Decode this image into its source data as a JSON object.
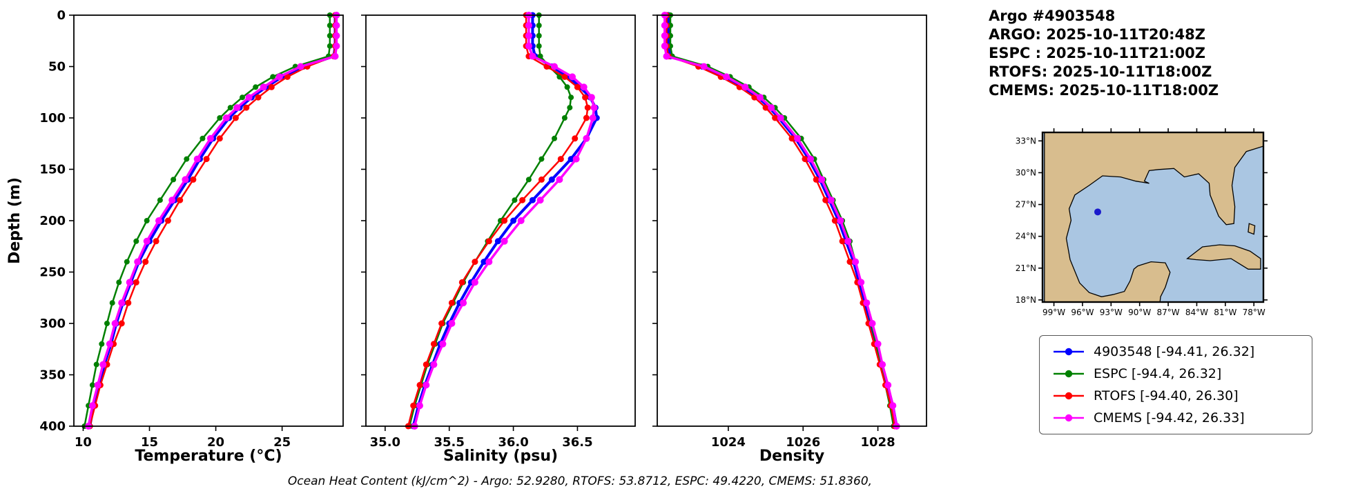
{
  "header": {
    "lines": [
      "Argo #4903548",
      "ARGO: 2025-10-11T20:48Z",
      "ESPC : 2025-10-11T21:00Z",
      "RTOFS: 2025-10-11T18:00Z",
      "CMEMS: 2025-10-11T18:00Z"
    ]
  },
  "caption": "Ocean Heat Content (kJ/cm^2) - Argo: 52.9280,  RTOFS: 53.8712,  ESPC: 49.4220,  CMEMS: 51.8360,",
  "legend": {
    "items": [
      {
        "label": "4903548 [-94.41, 26.32]",
        "color": "#0000ff"
      },
      {
        "label": "ESPC [-94.4, 26.32]",
        "color": "#008000"
      },
      {
        "label": "RTOFS [-94.40, 26.30]",
        "color": "#ff0000"
      },
      {
        "label": "CMEMS [-94.42, 26.33]",
        "color": "#ff00ff"
      }
    ]
  },
  "chart_data": {
    "type": "line",
    "subtype": "ocean-depth-profiles",
    "ylabel": "Depth (m)",
    "ylim": [
      0,
      400
    ],
    "yticks": [
      0,
      50,
      100,
      150,
      200,
      250,
      300,
      350,
      400
    ],
    "depths": [
      0,
      10,
      20,
      30,
      40,
      50,
      60,
      70,
      80,
      90,
      100,
      120,
      140,
      160,
      180,
      200,
      220,
      240,
      260,
      280,
      300,
      320,
      340,
      360,
      380,
      400
    ],
    "panels": [
      {
        "key": "temperature",
        "xlabel": "Temperature (°C)",
        "xlim": [
          9.3,
          29.6
        ],
        "xticks": [
          10,
          15,
          20,
          25
        ],
        "tick_labels": [
          "10",
          "15",
          "20",
          "25"
        ]
      },
      {
        "key": "salinity",
        "xlabel": "Salinity (psu)",
        "xlim": [
          34.85,
          36.95
        ],
        "xticks": [
          35.0,
          35.5,
          36.0,
          36.5
        ],
        "tick_labels": [
          "35.0",
          "35.5",
          "36.0",
          "36.5"
        ]
      },
      {
        "key": "density",
        "xlabel": "Density",
        "xlim": [
          1022.1,
          1029.3
        ],
        "xticks": [
          1024,
          1026,
          1028
        ],
        "tick_labels": [
          "1024",
          "1026",
          "1028"
        ]
      }
    ],
    "series": [
      {
        "name": "4903548",
        "color": "#0000ff",
        "lw": 4,
        "ms": 4.5,
        "temperature": [
          29.0,
          29.0,
          29.0,
          29.0,
          28.9,
          26.6,
          25.0,
          23.8,
          22.7,
          21.8,
          21.0,
          19.8,
          18.8,
          17.9,
          16.9,
          15.9,
          15.0,
          14.2,
          13.6,
          13.0,
          12.5,
          12.1,
          11.6,
          11.2,
          10.8,
          10.5
        ],
        "salinity": [
          36.15,
          36.15,
          36.15,
          36.15,
          36.17,
          36.3,
          36.43,
          36.52,
          36.6,
          36.64,
          36.65,
          36.57,
          36.45,
          36.3,
          36.15,
          36.0,
          35.88,
          35.77,
          35.67,
          35.58,
          35.5,
          35.43,
          35.37,
          35.31,
          35.26,
          35.22
        ],
        "density": [
          1022.4,
          1022.4,
          1022.4,
          1022.4,
          1022.45,
          1023.3,
          1023.9,
          1024.4,
          1024.8,
          1025.1,
          1025.35,
          1025.8,
          1026.15,
          1026.45,
          1026.7,
          1026.95,
          1027.15,
          1027.35,
          1027.5,
          1027.65,
          1027.8,
          1027.95,
          1028.1,
          1028.25,
          1028.4,
          1028.5
        ]
      },
      {
        "name": "ESPC",
        "color": "#008000",
        "lw": 2.5,
        "ms": 4,
        "temperature": [
          28.6,
          28.6,
          28.6,
          28.6,
          28.5,
          26.0,
          24.3,
          23.0,
          22.0,
          21.1,
          20.3,
          19.0,
          17.8,
          16.8,
          15.8,
          14.8,
          14.0,
          13.3,
          12.7,
          12.2,
          11.8,
          11.4,
          11.0,
          10.7,
          10.4,
          10.1
        ],
        "salinity": [
          36.2,
          36.2,
          36.2,
          36.2,
          36.21,
          36.28,
          36.36,
          36.42,
          36.45,
          36.44,
          36.4,
          36.32,
          36.22,
          36.12,
          36.01,
          35.9,
          35.8,
          35.7,
          35.61,
          35.53,
          35.45,
          35.39,
          35.33,
          35.28,
          35.23,
          35.19
        ],
        "density": [
          1022.45,
          1022.45,
          1022.45,
          1022.45,
          1022.5,
          1023.45,
          1024.05,
          1024.55,
          1024.95,
          1025.25,
          1025.5,
          1025.95,
          1026.3,
          1026.55,
          1026.8,
          1027.05,
          1027.25,
          1027.4,
          1027.55,
          1027.7,
          1027.82,
          1027.95,
          1028.08,
          1028.2,
          1028.32,
          1028.42
        ]
      },
      {
        "name": "RTOFS",
        "color": "#ff0000",
        "lw": 2.5,
        "ms": 4.5,
        "temperature": [
          29.0,
          29.0,
          29.0,
          29.0,
          28.9,
          26.9,
          25.4,
          24.2,
          23.2,
          22.3,
          21.5,
          20.3,
          19.3,
          18.3,
          17.3,
          16.4,
          15.5,
          14.7,
          14.0,
          13.4,
          12.9,
          12.3,
          11.8,
          11.3,
          10.9,
          10.5
        ],
        "salinity": [
          36.1,
          36.1,
          36.1,
          36.1,
          36.12,
          36.26,
          36.4,
          36.5,
          36.56,
          36.58,
          36.57,
          36.48,
          36.37,
          36.22,
          36.07,
          35.93,
          35.81,
          35.7,
          35.6,
          35.52,
          35.44,
          35.38,
          35.32,
          35.27,
          35.22,
          35.18
        ],
        "density": [
          1022.35,
          1022.35,
          1022.35,
          1022.35,
          1022.4,
          1023.2,
          1023.8,
          1024.3,
          1024.7,
          1025.0,
          1025.25,
          1025.7,
          1026.05,
          1026.35,
          1026.6,
          1026.85,
          1027.05,
          1027.25,
          1027.45,
          1027.6,
          1027.75,
          1027.9,
          1028.05,
          1028.2,
          1028.35,
          1028.45
        ]
      },
      {
        "name": "CMEMS",
        "color": "#ff00ff",
        "lw": 3.5,
        "ms": 5,
        "temperature": [
          29.1,
          29.1,
          29.1,
          29.1,
          29.0,
          26.4,
          24.8,
          23.6,
          22.5,
          21.6,
          20.8,
          19.6,
          18.6,
          17.7,
          16.7,
          15.7,
          14.8,
          14.1,
          13.5,
          12.9,
          12.4,
          12.0,
          11.5,
          11.1,
          10.7,
          10.4
        ],
        "salinity": [
          36.12,
          36.12,
          36.12,
          36.12,
          36.15,
          36.32,
          36.46,
          36.55,
          36.61,
          36.63,
          36.62,
          36.57,
          36.49,
          36.36,
          36.21,
          36.06,
          35.93,
          35.81,
          35.7,
          35.61,
          35.52,
          35.45,
          35.38,
          35.32,
          35.27,
          35.23
        ],
        "density": [
          1022.3,
          1022.3,
          1022.3,
          1022.3,
          1022.35,
          1023.35,
          1023.95,
          1024.45,
          1024.85,
          1025.15,
          1025.4,
          1025.85,
          1026.2,
          1026.5,
          1026.75,
          1027.0,
          1027.2,
          1027.4,
          1027.55,
          1027.7,
          1027.85,
          1028.0,
          1028.12,
          1028.27,
          1028.4,
          1028.5
        ]
      }
    ]
  },
  "map": {
    "water_color": "#aac6e2",
    "land_color": "#d8bd8e",
    "extent": {
      "lonW": [
        100.2,
        77.0
      ],
      "lat": [
        17.8,
        33.8
      ]
    },
    "lat_ticks": [
      {
        "v": 33,
        "label": "33°N"
      },
      {
        "v": 30,
        "label": "30°N"
      },
      {
        "v": 27,
        "label": "27°N"
      },
      {
        "v": 24,
        "label": "24°N"
      },
      {
        "v": 21,
        "label": "21°N"
      },
      {
        "v": 18,
        "label": "18°N"
      }
    ],
    "lon_ticks": [
      {
        "v": 99,
        "label": "99°W"
      },
      {
        "v": 96,
        "label": "96°W"
      },
      {
        "v": 93,
        "label": "93°W"
      },
      {
        "v": 90,
        "label": "90°W"
      },
      {
        "v": 87,
        "label": "87°W"
      },
      {
        "v": 84,
        "label": "84°W"
      },
      {
        "v": 81,
        "label": "81°W"
      },
      {
        "v": 78,
        "label": "78°W"
      }
    ],
    "polygons": {
      "mainland": [
        [
          100,
          34
        ],
        [
          77,
          34
        ],
        [
          77,
          32.5
        ],
        [
          78.8,
          32.0
        ],
        [
          80.0,
          30.5
        ],
        [
          80.3,
          28.8
        ],
        [
          80.0,
          26.8
        ],
        [
          80.1,
          25.2
        ],
        [
          80.9,
          25.1
        ],
        [
          81.7,
          25.9
        ],
        [
          82.6,
          27.9
        ],
        [
          82.7,
          29.0
        ],
        [
          83.8,
          29.9
        ],
        [
          85.3,
          29.6
        ],
        [
          86.4,
          30.4
        ],
        [
          88.0,
          30.3
        ],
        [
          89.0,
          30.2
        ],
        [
          89.5,
          29.2
        ],
        [
          89.0,
          29.0
        ],
        [
          90.4,
          29.2
        ],
        [
          92.0,
          29.6
        ],
        [
          93.9,
          29.7
        ],
        [
          95.3,
          28.8
        ],
        [
          96.8,
          27.9
        ],
        [
          97.4,
          26.6
        ],
        [
          97.2,
          25.5
        ],
        [
          97.7,
          23.8
        ],
        [
          97.3,
          21.8
        ],
        [
          96.3,
          19.6
        ],
        [
          95.3,
          18.7
        ],
        [
          94.0,
          18.3
        ],
        [
          92.8,
          18.5
        ],
        [
          91.6,
          18.8
        ],
        [
          91.0,
          19.8
        ],
        [
          90.6,
          20.9
        ],
        [
          90.2,
          21.2
        ],
        [
          88.8,
          21.6
        ],
        [
          87.3,
          21.5
        ],
        [
          86.8,
          20.6
        ],
        [
          87.3,
          19.2
        ],
        [
          87.8,
          18.3
        ],
        [
          87.9,
          17.5
        ],
        [
          100,
          17.5
        ]
      ],
      "cuba": [
        [
          85.0,
          21.9
        ],
        [
          83.4,
          23.0
        ],
        [
          81.6,
          23.2
        ],
        [
          80.0,
          23.1
        ],
        [
          78.4,
          22.6
        ],
        [
          77.3,
          21.9
        ],
        [
          77.3,
          20.9
        ],
        [
          78.6,
          20.9
        ],
        [
          80.4,
          21.9
        ],
        [
          82.6,
          21.7
        ],
        [
          84.1,
          21.8
        ]
      ],
      "andros": [
        [
          78.5,
          25.2
        ],
        [
          77.9,
          25.0
        ],
        [
          78.0,
          24.2
        ],
        [
          78.6,
          24.4
        ]
      ]
    },
    "marker": {
      "lonW": 94.4,
      "lat": 26.3,
      "color": "#1a1acc"
    }
  }
}
